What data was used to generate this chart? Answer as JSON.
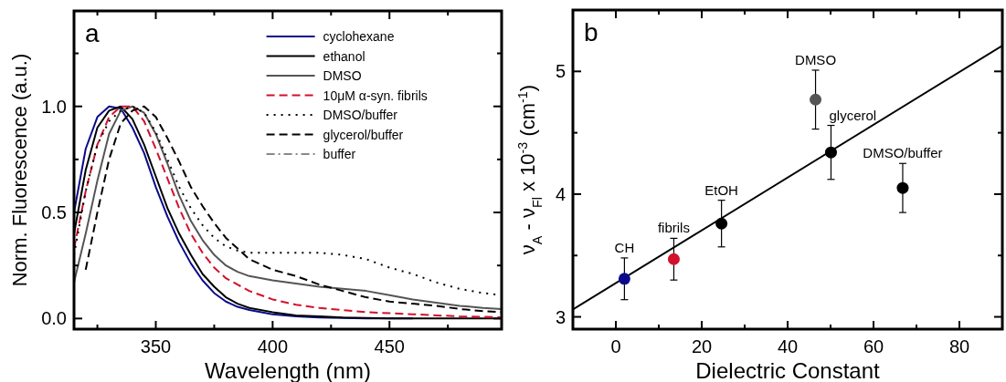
{
  "chart_data": [
    {
      "type": "line",
      "xlabel": "Wavelength (nm)",
      "ylabel": "Norm. Fluorescence (a.u.)",
      "annotations": [
        "a"
      ],
      "x": [
        315,
        320,
        325,
        330,
        335,
        340,
        345,
        350,
        355,
        360,
        365,
        370,
        375,
        380,
        385,
        390,
        400,
        410,
        420,
        430,
        440,
        450,
        460,
        470,
        480,
        490,
        498
      ],
      "xlim": [
        315,
        498
      ],
      "ylim": [
        -0.05,
        1.45
      ],
      "xticks": [
        {
          "value": 325,
          "label": null
        },
        350,
        {
          "value": 375,
          "label": null
        },
        400,
        {
          "value": 425,
          "label": null
        },
        450,
        {
          "value": 475,
          "label": null
        }
      ],
      "yticks": [
        {
          "value": 0,
          "label": "0.0"
        },
        {
          "value": 0.25,
          "label": null
        },
        {
          "value": 0.5,
          "label": "0.5"
        },
        {
          "value": 0.75,
          "label": null
        },
        {
          "value": 1,
          "label": "1.0"
        },
        {
          "value": 1.25,
          "label": null
        }
      ],
      "grid": false,
      "legend": "top right",
      "series": [
        {
          "name": "cyclohexane",
          "color": "#0a0a8c",
          "line_style": "solid",
          "values": [
            0.5,
            0.8,
            0.95,
            1.0,
            0.99,
            0.9,
            0.78,
            0.62,
            0.48,
            0.36,
            0.26,
            0.18,
            0.12,
            0.08,
            0.055,
            0.04,
            0.02,
            0.01,
            0.005,
            0.003,
            0,
            0,
            0,
            null,
            null,
            null,
            null
          ]
        },
        {
          "name": "ethanol",
          "color": "#000000",
          "line_style": "solid",
          "values": [
            0.4,
            0.7,
            0.9,
            0.98,
            1.0,
            0.94,
            0.82,
            0.67,
            0.52,
            0.4,
            0.3,
            0.21,
            0.15,
            0.1,
            0.07,
            0.05,
            0.03,
            0.015,
            0.01,
            0.005,
            0.003,
            0,
            0,
            0,
            0,
            0,
            0
          ]
        },
        {
          "name": "DMSO",
          "color": "#555555",
          "line_style": "solid",
          "values": [
            0.17,
            0.4,
            0.65,
            0.87,
            0.98,
            1.0,
            0.97,
            0.87,
            0.73,
            0.58,
            0.46,
            0.37,
            0.3,
            0.25,
            0.22,
            0.2,
            0.18,
            0.165,
            0.15,
            0.14,
            0.13,
            0.11,
            0.09,
            0.075,
            0.06,
            0.05,
            0.045
          ]
        },
        {
          "name": "10μM α-syn. fibrils",
          "color": "#d4102c",
          "line_style": "dashed",
          "values": [
            0.33,
            0.6,
            0.82,
            0.95,
            1.0,
            1.0,
            0.93,
            0.8,
            0.66,
            0.52,
            0.4,
            0.31,
            0.24,
            0.19,
            0.16,
            0.13,
            0.09,
            0.065,
            0.05,
            0.04,
            0.03,
            0.025,
            0.02,
            0.015,
            0.01,
            0.008,
            0.005
          ]
        },
        {
          "name": "DMSO/buffer",
          "color": "#000000",
          "line_style": "dotted",
          "values": [
            0.3,
            0.6,
            0.82,
            0.93,
            0.98,
            1.0,
            0.97,
            0.88,
            0.75,
            0.62,
            0.52,
            0.44,
            0.38,
            0.34,
            0.32,
            0.31,
            0.31,
            0.31,
            0.31,
            0.3,
            0.28,
            0.24,
            0.21,
            0.17,
            0.14,
            0.12,
            0.11
          ]
        },
        {
          "name": "glycerol/buffer",
          "color": "#000000",
          "line_style": "dashed",
          "values": [
            null,
            0.23,
            0.5,
            0.75,
            0.92,
            0.98,
            1.0,
            0.95,
            0.85,
            0.74,
            0.62,
            0.53,
            0.45,
            0.38,
            0.33,
            0.28,
            0.23,
            0.2,
            0.16,
            0.13,
            0.1,
            0.08,
            0.07,
            0.06,
            0.045,
            0.035,
            0.03
          ]
        },
        {
          "name": "buffer",
          "color": "#888888",
          "line_style": "dashdot",
          "values": [
            null,
            null,
            null,
            null,
            null,
            null,
            null,
            null,
            null,
            null,
            null,
            null,
            null,
            null,
            null,
            null,
            null,
            null,
            null,
            null,
            null,
            null,
            null,
            null,
            null,
            null,
            null
          ]
        }
      ]
    },
    {
      "type": "scatter",
      "xlabel": "Dielectric Constant",
      "ylabel": "ν$_{A}$ - ν$_{Fl}$ x 10$^{-3}$ (cm$^{-1}$)",
      "annotations": [
        "b",
        {
          "text": "CH",
          "x": 2,
          "y": 3.31
        },
        {
          "text": "fibrils",
          "x": 13.5,
          "y": 3.47
        },
        {
          "text": "EtOH",
          "x": 24.6,
          "y": 3.76
        },
        {
          "text": "DMSO",
          "x": 46.5,
          "y": 4.77
        },
        {
          "text": "glycerol",
          "x": 50.1,
          "y": 4.34
        },
        {
          "text": "DMSO/buffer",
          "x": 66.8,
          "y": 4.05
        }
      ],
      "xlim": [
        -10,
        90
      ],
      "ylim": [
        2.9,
        5.5
      ],
      "xticks": [
        {
          "value": -10,
          "label": null
        },
        0,
        {
          "value": 10,
          "label": null
        },
        20,
        {
          "value": 30,
          "label": null
        },
        40,
        {
          "value": 50,
          "label": null
        },
        60,
        {
          "value": 70,
          "label": null
        },
        80
      ],
      "yticks": [
        3,
        {
          "value": 3.5,
          "label": null
        },
        4,
        {
          "value": 4.5,
          "label": null
        },
        5
      ],
      "grid": false,
      "legend": false,
      "series": [
        {
          "marker": "circle",
          "x": [
            2,
            13.5,
            24.6,
            46.5,
            50.1,
            66.8
          ],
          "values": [
            3.31,
            3.47,
            3.76,
            4.77,
            4.34,
            4.05
          ],
          "errors": [
            0.17,
            0.17,
            0.19,
            0.24,
            0.22,
            0.2
          ],
          "colors": [
            "#0a0a8c",
            "#d4102c",
            "#000000",
            "#555555",
            "#000000",
            "#000000"
          ]
        },
        {
          "type": "line",
          "x": [
            -10,
            90
          ],
          "values": [
            3.06,
            5.21
          ],
          "color": "#000000"
        }
      ]
    }
  ]
}
